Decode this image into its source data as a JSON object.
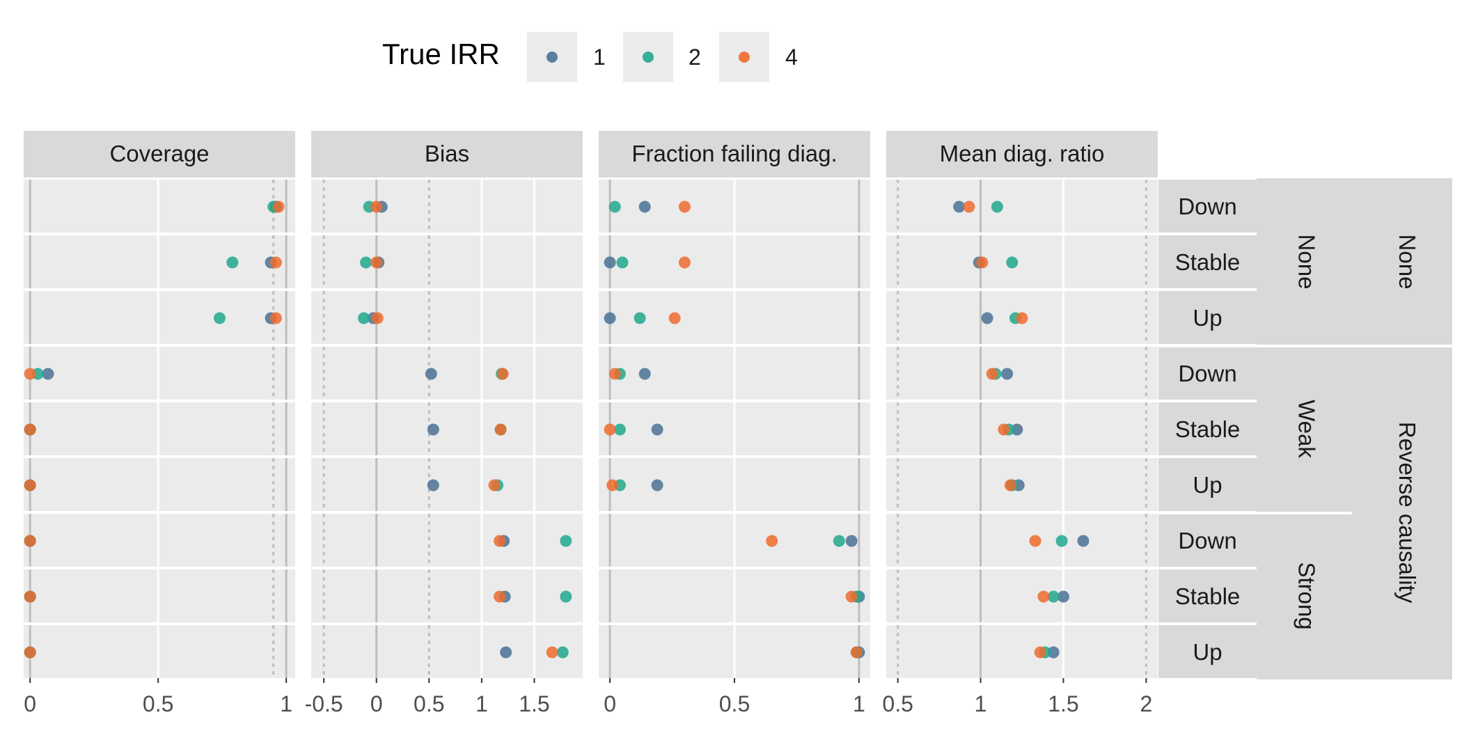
{
  "legend": {
    "title": "True IRR",
    "items": [
      {
        "label": "1",
        "color": "#4a7295"
      },
      {
        "label": "2",
        "color": "#21a88d"
      },
      {
        "label": "4",
        "color": "#ef6b2e"
      }
    ]
  },
  "chart_data": {
    "type": "scatter",
    "facet_columns": [
      "Coverage",
      "Bias",
      "Fraction failing diag.",
      "Mean diag. ratio"
    ],
    "row_labels": [
      "Down",
      "Stable",
      "Up",
      "Down",
      "Stable",
      "Up",
      "Down",
      "Stable",
      "Up"
    ],
    "strip_level2": [
      {
        "label": "None",
        "rows": [
          0,
          2
        ]
      },
      {
        "label": "Weak",
        "rows": [
          3,
          5
        ]
      },
      {
        "label": "Strong",
        "rows": [
          6,
          8
        ]
      }
    ],
    "strip_level3": [
      {
        "label": "None",
        "rows": [
          0,
          2
        ]
      },
      {
        "label": "Reverse causality",
        "rows": [
          3,
          8
        ]
      }
    ],
    "series": [
      {
        "name": "1",
        "color": "#4a7295"
      },
      {
        "name": "2",
        "color": "#21a88d"
      },
      {
        "name": "4",
        "color": "#ef6b2e"
      }
    ],
    "panels": [
      {
        "column": "Coverage",
        "xlim": [
          -0.025,
          1.035
        ],
        "ticks": [
          0,
          0.5,
          1
        ],
        "tick_labels": [
          "0",
          "0.5",
          "1"
        ],
        "solid_lines": [
          0,
          1
        ],
        "dashed_lines": [
          0.95
        ],
        "values": [
          [
            0.96,
            0.95,
            0.97
          ],
          [
            0.94,
            0.79,
            0.96
          ],
          [
            0.94,
            0.74,
            0.96
          ],
          [
            0.07,
            0.03,
            0.0
          ],
          [
            0.0,
            0.0,
            0.0
          ],
          [
            0.0,
            0.0,
            0.0
          ],
          [
            0.0,
            0.0,
            0.0
          ],
          [
            0.0,
            0.0,
            0.0
          ],
          [
            0.0,
            0.0,
            0.0
          ]
        ]
      },
      {
        "column": "Bias",
        "xlim": [
          -0.62,
          1.96
        ],
        "ticks": [
          -0.5,
          0,
          0.5,
          1,
          1.5
        ],
        "tick_labels": [
          "-0.5",
          "0",
          "0.5",
          "1",
          "1.5"
        ],
        "solid_lines": [
          0
        ],
        "dashed_lines": [
          -0.5,
          0.5
        ],
        "values": [
          [
            0.05,
            -0.07,
            0.0
          ],
          [
            0.02,
            -0.1,
            0.0
          ],
          [
            -0.03,
            -0.12,
            0.01
          ],
          [
            0.52,
            1.19,
            1.2
          ],
          [
            0.54,
            1.18,
            1.18
          ],
          [
            0.54,
            1.15,
            1.12
          ],
          [
            1.21,
            1.8,
            1.17
          ],
          [
            1.22,
            1.8,
            1.17
          ],
          [
            1.23,
            1.77,
            1.67
          ]
        ]
      },
      {
        "column": "Fraction failing diag.",
        "xlim": [
          -0.045,
          1.045
        ],
        "ticks": [
          0,
          0.5,
          1
        ],
        "tick_labels": [
          "0",
          "0.5",
          "1"
        ],
        "solid_lines": [
          0,
          1
        ],
        "dashed_lines": [],
        "values": [
          [
            0.14,
            0.02,
            0.3
          ],
          [
            0.0,
            0.05,
            0.3
          ],
          [
            0.0,
            0.12,
            0.26
          ],
          [
            0.14,
            0.04,
            0.02
          ],
          [
            0.19,
            0.04,
            0.0
          ],
          [
            0.19,
            0.04,
            0.01
          ],
          [
            0.97,
            0.92,
            0.65
          ],
          [
            1.0,
            0.99,
            0.97
          ],
          [
            1.0,
            0.99,
            0.99
          ]
        ]
      },
      {
        "column": "Mean diag. ratio",
        "xlim": [
          0.43,
          2.07
        ],
        "ticks": [
          0.5,
          1,
          1.5,
          2
        ],
        "tick_labels": [
          "0.5",
          "1",
          "1.5",
          "2"
        ],
        "solid_lines": [
          1
        ],
        "dashed_lines": [
          0.5,
          2
        ],
        "values": [
          [
            0.87,
            1.1,
            0.93
          ],
          [
            0.99,
            1.19,
            1.01
          ],
          [
            1.04,
            1.21,
            1.25
          ],
          [
            1.16,
            1.09,
            1.07
          ],
          [
            1.22,
            1.17,
            1.14
          ],
          [
            1.23,
            1.19,
            1.18
          ],
          [
            1.62,
            1.49,
            1.33
          ],
          [
            1.5,
            1.44,
            1.38
          ],
          [
            1.44,
            1.39,
            1.36
          ]
        ]
      }
    ]
  }
}
